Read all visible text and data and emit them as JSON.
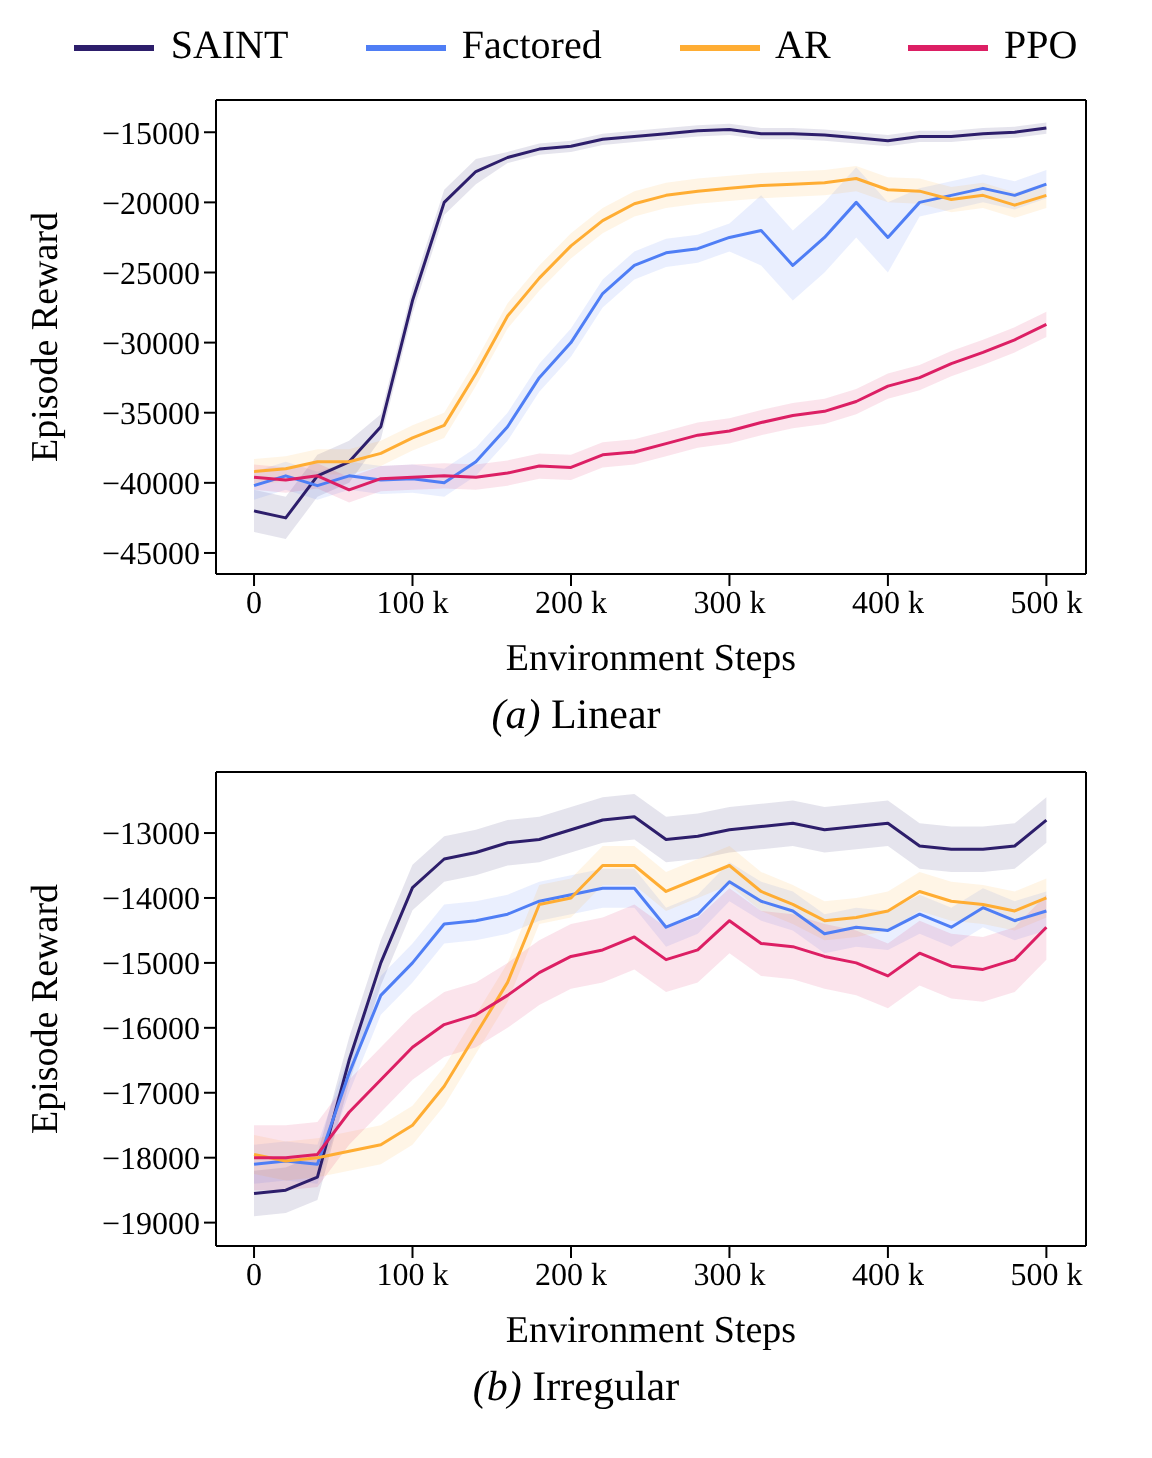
{
  "chart_data": [
    {
      "type": "line",
      "title": "(a) Linear",
      "xlabel": "Environment Steps",
      "ylabel": "Episode Reward",
      "legend": "top",
      "x": [
        0,
        20000,
        40000,
        60000,
        80000,
        100000,
        120000,
        140000,
        160000,
        180000,
        200000,
        220000,
        240000,
        260000,
        280000,
        300000,
        320000,
        340000,
        360000,
        380000,
        400000,
        420000,
        440000,
        460000,
        480000,
        500000
      ],
      "xlim": [
        -24000,
        525000
      ],
      "ylim": [
        -46500,
        -12700
      ],
      "xticks": [
        0,
        {
          "value": 100000,
          "label": "100 k"
        },
        {
          "value": 200000,
          "label": "200 k"
        },
        {
          "value": 300000,
          "label": "300 k"
        },
        {
          "value": 400000,
          "label": "400 k"
        },
        {
          "value": 500000,
          "label": "500 k"
        }
      ],
      "yticks": [
        {
          "value": -45000,
          "label": "−45000"
        },
        {
          "value": -40000,
          "label": "−40000"
        },
        {
          "value": -35000,
          "label": "−35000"
        },
        {
          "value": -30000,
          "label": "−30000"
        },
        {
          "value": -25000,
          "label": "−25000"
        },
        {
          "value": -20000,
          "label": "−20000"
        },
        {
          "value": -15000,
          "label": "−15000"
        }
      ],
      "series": [
        {
          "name": "SAINT",
          "color": "#2d1e6b",
          "values": [
            -42000,
            -42500,
            -39500,
            -38500,
            -36000,
            -27000,
            -20000,
            -17800,
            -16800,
            -16200,
            -16000,
            -15500,
            -15300,
            -15100,
            -14900,
            -14800,
            -15100,
            -15100,
            -15200,
            -15400,
            -15600,
            -15300,
            -15300,
            -15100,
            -15000,
            -14700
          ],
          "lower": [
            -43500,
            -44000,
            -41000,
            -40000,
            -36900,
            -27900,
            -20900,
            -18700,
            -17200,
            -16600,
            -16400,
            -15900,
            -15700,
            -15500,
            -15300,
            -15200,
            -15500,
            -15500,
            -15600,
            -15800,
            -16000,
            -15700,
            -15700,
            -15500,
            -15400,
            -15100
          ],
          "upper": [
            -40500,
            -41000,
            -38000,
            -37000,
            -35100,
            -26100,
            -19100,
            -16900,
            -16400,
            -15800,
            -15600,
            -15100,
            -14900,
            -14700,
            -14500,
            -14400,
            -14700,
            -14700,
            -14800,
            -15000,
            -15200,
            -14900,
            -14900,
            -14700,
            -14600,
            -14300
          ]
        },
        {
          "name": "Factored",
          "color": "#4f7ef5",
          "values": [
            -40200,
            -39500,
            -40200,
            -39500,
            -39800,
            -39700,
            -40000,
            -38500,
            -36000,
            -32500,
            -30000,
            -26500,
            -24500,
            -23600,
            -23300,
            -22500,
            -22000,
            -24500,
            -22500,
            -20000,
            -22500,
            -20000,
            -19500,
            -19000,
            -19500,
            -18700
          ],
          "lower": [
            -41200,
            -40500,
            -41200,
            -40500,
            -40800,
            -40700,
            -41000,
            -39500,
            -37000,
            -33500,
            -31000,
            -27500,
            -25500,
            -24600,
            -24300,
            -23500,
            -24500,
            -27000,
            -25000,
            -22500,
            -25000,
            -21000,
            -20500,
            -20000,
            -20500,
            -19700
          ],
          "upper": [
            -39200,
            -38500,
            -39200,
            -38500,
            -38800,
            -38700,
            -39000,
            -37500,
            -35000,
            -31500,
            -29000,
            -25500,
            -23500,
            -22600,
            -22300,
            -21500,
            -19500,
            -22000,
            -20000,
            -17500,
            -20000,
            -19000,
            -18500,
            -18000,
            -18500,
            -17700
          ]
        },
        {
          "name": "AR",
          "color": "#ffad33",
          "values": [
            -39200,
            -39000,
            -38500,
            -38500,
            -37900,
            -36800,
            -35900,
            -32200,
            -28100,
            -25400,
            -23100,
            -21300,
            -20100,
            -19500,
            -19200,
            -19000,
            -18800,
            -18700,
            -18600,
            -18300,
            -19100,
            -19200,
            -19800,
            -19500,
            -20200,
            -19500
          ],
          "lower": [
            -40100,
            -39900,
            -39400,
            -39400,
            -38800,
            -37700,
            -36800,
            -33100,
            -29000,
            -26300,
            -24000,
            -22200,
            -21000,
            -20400,
            -20100,
            -19900,
            -19700,
            -19600,
            -19500,
            -19200,
            -20000,
            -20100,
            -20700,
            -20400,
            -21100,
            -20400
          ],
          "upper": [
            -38300,
            -38100,
            -37600,
            -37600,
            -37000,
            -35900,
            -35000,
            -31300,
            -27200,
            -24500,
            -22200,
            -20400,
            -19200,
            -18600,
            -18300,
            -18100,
            -17900,
            -17800,
            -17700,
            -17400,
            -18200,
            -18300,
            -18900,
            -18600,
            -19300,
            -18600
          ]
        },
        {
          "name": "PPO",
          "color": "#dc1f64",
          "values": [
            -39600,
            -39800,
            -39500,
            -40500,
            -39700,
            -39600,
            -39500,
            -39600,
            -39300,
            -38800,
            -38900,
            -38000,
            -37800,
            -37200,
            -36600,
            -36300,
            -35700,
            -35200,
            -34900,
            -34200,
            -33100,
            -32500,
            -31500,
            -30700,
            -29800,
            -28700
          ],
          "lower": [
            -40500,
            -40700,
            -40400,
            -41400,
            -40600,
            -40500,
            -40400,
            -40500,
            -40200,
            -39700,
            -39800,
            -38900,
            -38700,
            -38100,
            -37500,
            -37200,
            -36600,
            -36100,
            -35800,
            -35100,
            -34000,
            -33400,
            -32400,
            -31600,
            -30700,
            -29600
          ],
          "upper": [
            -38700,
            -38900,
            -38600,
            -39600,
            -38800,
            -38700,
            -38600,
            -38700,
            -38400,
            -37900,
            -38000,
            -37100,
            -36900,
            -36300,
            -35700,
            -35400,
            -34800,
            -34300,
            -34000,
            -33300,
            -32200,
            -31600,
            -30600,
            -29800,
            -28900,
            -27800
          ]
        }
      ]
    },
    {
      "type": "line",
      "title": "(b) Irregular",
      "xlabel": "Environment Steps",
      "ylabel": "Episode Reward",
      "x": [
        0,
        20000,
        40000,
        60000,
        80000,
        100000,
        120000,
        140000,
        160000,
        180000,
        200000,
        220000,
        240000,
        260000,
        280000,
        300000,
        320000,
        340000,
        360000,
        380000,
        400000,
        420000,
        440000,
        460000,
        480000,
        500000
      ],
      "xlim": [
        -24000,
        525000
      ],
      "ylim": [
        -19360,
        -12060
      ],
      "xticks": [
        0,
        {
          "value": 100000,
          "label": "100 k"
        },
        {
          "value": 200000,
          "label": "200 k"
        },
        {
          "value": 300000,
          "label": "300 k"
        },
        {
          "value": 400000,
          "label": "400 k"
        },
        {
          "value": 500000,
          "label": "500 k"
        }
      ],
      "yticks": [
        {
          "value": -19000,
          "label": "−19000"
        },
        {
          "value": -18000,
          "label": "−18000"
        },
        {
          "value": -17000,
          "label": "−17000"
        },
        {
          "value": -16000,
          "label": "−16000"
        },
        {
          "value": -15000,
          "label": "−15000"
        },
        {
          "value": -14000,
          "label": "−14000"
        },
        {
          "value": -13000,
          "label": "−13000"
        }
      ],
      "series": [
        {
          "color": "#2d1e6b",
          "values": [
            -18550,
            -18500,
            -18300,
            -16500,
            -15000,
            -13840,
            -13400,
            -13300,
            -13150,
            -13100,
            -12950,
            -12800,
            -12750,
            -13100,
            -13050,
            -12950,
            -12900,
            -12850,
            -12950,
            -12900,
            -12850,
            -13200,
            -13250,
            -13250,
            -13200,
            -12800
          ],
          "lower": [
            -18900,
            -18850,
            -18650,
            -16850,
            -15350,
            -14190,
            -13750,
            -13650,
            -13500,
            -13450,
            -13300,
            -13150,
            -13100,
            -13450,
            -13400,
            -13300,
            -13250,
            -13200,
            -13300,
            -13250,
            -13200,
            -13550,
            -13600,
            -13600,
            -13550,
            -13150
          ],
          "upper": [
            -18200,
            -18150,
            -17950,
            -16150,
            -14650,
            -13490,
            -13050,
            -12950,
            -12800,
            -12750,
            -12600,
            -12450,
            -12400,
            -12750,
            -12700,
            -12600,
            -12550,
            -12500,
            -12600,
            -12550,
            -12500,
            -12850,
            -12900,
            -12900,
            -12850,
            -12450
          ]
        },
        {
          "color": "#4f7ef5",
          "values": [
            -18100,
            -18050,
            -18100,
            -16700,
            -15500,
            -15000,
            -14400,
            -14350,
            -14250,
            -14050,
            -13950,
            -13850,
            -13850,
            -14450,
            -14250,
            -13750,
            -14050,
            -14200,
            -14550,
            -14450,
            -14500,
            -14250,
            -14450,
            -14150,
            -14350,
            -14200
          ],
          "lower": [
            -18400,
            -18350,
            -18400,
            -17000,
            -15800,
            -15300,
            -14700,
            -14650,
            -14550,
            -14350,
            -14250,
            -14150,
            -14150,
            -14750,
            -14550,
            -14050,
            -14350,
            -14500,
            -14850,
            -14750,
            -14800,
            -14550,
            -14750,
            -14450,
            -14650,
            -14500
          ],
          "upper": [
            -17800,
            -17750,
            -17800,
            -16400,
            -15200,
            -14700,
            -14100,
            -14050,
            -13950,
            -13750,
            -13650,
            -13550,
            -13550,
            -14150,
            -13950,
            -13450,
            -13750,
            -13900,
            -14250,
            -14150,
            -14200,
            -13950,
            -14150,
            -13850,
            -14050,
            -13900
          ]
        },
        {
          "color": "#ffad33",
          "values": [
            -17950,
            -18050,
            -18000,
            -17900,
            -17800,
            -17500,
            -16900,
            -16100,
            -15300,
            -14100,
            -14000,
            -13500,
            -13500,
            -13900,
            -13700,
            -13500,
            -13900,
            -14100,
            -14350,
            -14300,
            -14200,
            -13900,
            -14050,
            -14100,
            -14200,
            -14000
          ],
          "lower": [
            -18250,
            -18350,
            -18300,
            -18200,
            -18100,
            -17800,
            -17200,
            -16400,
            -15600,
            -14400,
            -14300,
            -13800,
            -13800,
            -14200,
            -14000,
            -13800,
            -14200,
            -14400,
            -14650,
            -14600,
            -14500,
            -14200,
            -14350,
            -14400,
            -14500,
            -14300
          ],
          "upper": [
            -17650,
            -17750,
            -17700,
            -17600,
            -17500,
            -17200,
            -16600,
            -15800,
            -15000,
            -13800,
            -13700,
            -13200,
            -13200,
            -13600,
            -13400,
            -13200,
            -13600,
            -13800,
            -14050,
            -14000,
            -13900,
            -13600,
            -13750,
            -13800,
            -13900,
            -13700
          ]
        },
        {
          "color": "#dc1f64",
          "values": [
            -18000,
            -18000,
            -17950,
            -17300,
            -16800,
            -16300,
            -15950,
            -15800,
            -15500,
            -15150,
            -14900,
            -14800,
            -14600,
            -14950,
            -14800,
            -14350,
            -14700,
            -14750,
            -14900,
            -15000,
            -15200,
            -14850,
            -15050,
            -15100,
            -14950,
            -14450
          ],
          "lower": [
            -18500,
            -18500,
            -18450,
            -17800,
            -17300,
            -16800,
            -16450,
            -16300,
            -16000,
            -15650,
            -15400,
            -15300,
            -15100,
            -15450,
            -15300,
            -14850,
            -15200,
            -15250,
            -15400,
            -15500,
            -15700,
            -15350,
            -15550,
            -15600,
            -15450,
            -14950
          ],
          "upper": [
            -17500,
            -17500,
            -17450,
            -16800,
            -16300,
            -15800,
            -15450,
            -15300,
            -15000,
            -14650,
            -14400,
            -14300,
            -14100,
            -14450,
            -14300,
            -13850,
            -14200,
            -14250,
            -14400,
            -14500,
            -14700,
            -14350,
            -14550,
            -14600,
            -14450,
            -13950
          ]
        }
      ]
    }
  ]
}
